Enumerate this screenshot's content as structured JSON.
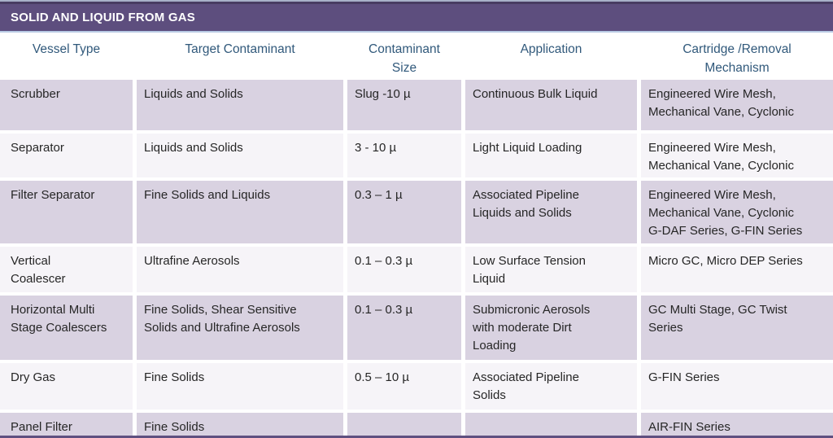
{
  "title": "SOLID AND LIQUID FROM GAS",
  "colors": {
    "title_bar": "#5d4e7e",
    "title_top_dark_line": "#483c62",
    "title_top_light_line": "#a7b0c8",
    "title_bottom_line": "#b9cbe4",
    "header_text": "#31597b",
    "row_odd_background": "#d9d2e1",
    "row_even_background": "#f6f4f8",
    "body_text": "#262626"
  },
  "table": {
    "columns": [
      "Vessel Type",
      "Target Contaminant",
      "Contaminant\nSize",
      "Application",
      "Cartridge /Removal\nMechanism"
    ],
    "rows": [
      [
        "Scrubber",
        "Liquids and Solids",
        "Slug -10 µ",
        "Continuous Bulk Liquid",
        "Engineered Wire Mesh,\nMechanical Vane, Cyclonic"
      ],
      [
        "Separator",
        "Liquids and Solids",
        "3 - 10 µ",
        "Light Liquid Loading",
        "Engineered Wire Mesh,\nMechanical Vane, Cyclonic"
      ],
      [
        "Filter Separator",
        "Fine Solids and Liquids",
        "0.3 – 1 µ",
        "Associated Pipeline\nLiquids and Solids",
        "Engineered Wire Mesh,\nMechanical Vane, Cyclonic\nG-DAF Series, G-FIN Series"
      ],
      [
        "Vertical\nCoalescer",
        "Ultrafine Aerosols",
        "0.1 – 0.3 µ",
        "Low Surface Tension\nLiquid",
        "Micro GC, Micro DEP Series"
      ],
      [
        "Horizontal Multi\nStage Coalescers",
        "Fine Solids, Shear Sensitive\nSolids and Ultrafine Aerosols",
        "0.1 – 0.3 µ",
        "Submicronic Aerosols\nwith moderate Dirt\nLoading",
        "GC Multi Stage, GC Twist\nSeries"
      ],
      [
        "Dry Gas",
        "Fine Solids",
        "0.5 – 10 µ",
        "Associated Pipeline\nSolids",
        "G-FIN Series"
      ],
      [
        "Panel Filter",
        "Fine Solids",
        "",
        "",
        "AIR-FIN Series"
      ]
    ]
  }
}
